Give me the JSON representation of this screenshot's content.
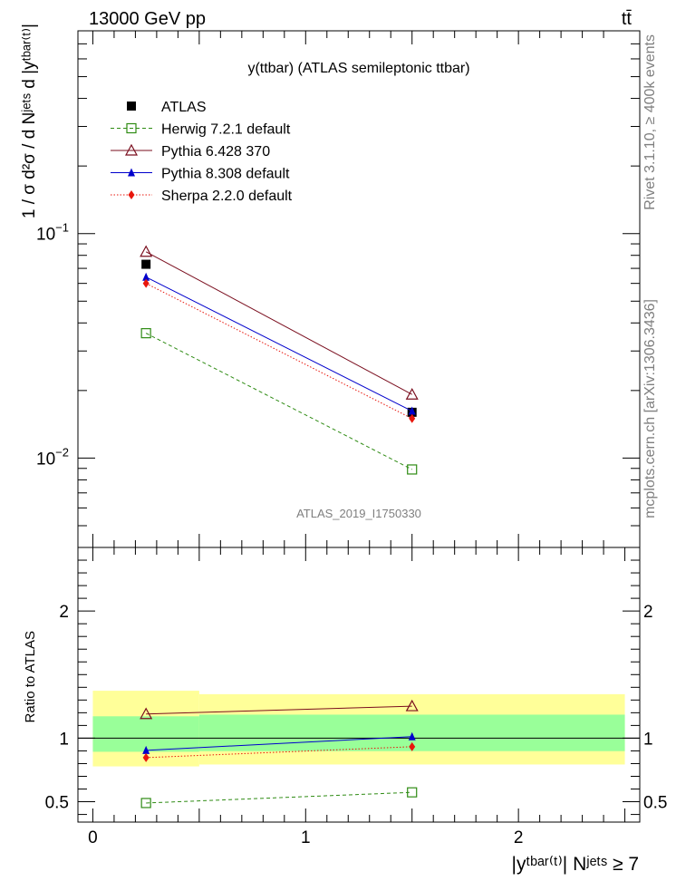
{
  "header": {
    "energy_label": "13000 GeV pp",
    "process_label": "tt̄"
  },
  "side_text": {
    "rivet": "Rivet 3.1.10, ≥ 400k events",
    "source": "mcplots.cern.ch [arXiv:1306.3436]"
  },
  "chart_data": [
    {
      "type": "line",
      "title": "y(ttbar) (ATLAS semileptonic ttbar)",
      "ylabel": "1 / σ d²σ / d Nʲᵉᵗˢ d |yᵗᵇᵃʳ⁽ᵗ⁾|",
      "ylog": true,
      "ylim": [
        0.004,
        0.8
      ],
      "xlim": [
        -0.07,
        2.57
      ],
      "yticks": [
        {
          "value": 0.1,
          "base": "10",
          "exp": "−1"
        },
        {
          "value": 0.01,
          "base": "10",
          "exp": "−2"
        }
      ],
      "watermark": "ATLAS_2019_I1750330",
      "legend_position": "top-left",
      "x": [
        0.25,
        1.5
      ],
      "series": [
        {
          "name": "ATLAS",
          "values": [
            0.073,
            0.016
          ],
          "color": "#000000",
          "marker": "square-filled",
          "line": "none"
        },
        {
          "name": "Herwig 7.2.1 default",
          "values": [
            0.036,
            0.0089
          ],
          "color": "#2e8b13",
          "marker": "square-open",
          "line": "dashed"
        },
        {
          "name": "Pythia 6.428 370",
          "values": [
            0.083,
            0.0192
          ],
          "color": "#7a0e1e",
          "marker": "triangle-open",
          "line": "solid"
        },
        {
          "name": "Pythia 8.308 default",
          "values": [
            0.064,
            0.0162
          ],
          "color": "#0000cc",
          "marker": "triangle-filled",
          "line": "solid"
        },
        {
          "name": "Sherpa 2.2.0 default",
          "values": [
            0.06,
            0.015
          ],
          "color": "#e8160c",
          "marker": "diamond-filled",
          "line": "dotted"
        }
      ]
    },
    {
      "type": "line",
      "ylabel": "Ratio to ATLAS",
      "xlabel": "|yᵗᵇᵃʳ⁽ᵗ⁾| Nʲᵉᵗˢ ≥ 7",
      "xlim": [
        -0.07,
        2.57
      ],
      "ylim": [
        0.34,
        2.5
      ],
      "xticks": [
        0,
        1,
        2
      ],
      "yticks": [
        0.5,
        1,
        2
      ],
      "x": [
        0.25,
        1.5
      ],
      "bins": [
        [
          0,
          0.5
        ],
        [
          0.5,
          2.5
        ]
      ],
      "bands": [
        {
          "name": "yellow",
          "color": "#ffff99",
          "lo": [
            0.778,
            0.793
          ],
          "hi": [
            1.373,
            1.346
          ]
        },
        {
          "name": "green",
          "color": "#99ff99",
          "lo": [
            0.893,
            0.898
          ],
          "hi": [
            1.172,
            1.185
          ]
        }
      ],
      "series": [
        {
          "name": "Herwig 7.2.1 default",
          "values": [
            0.49,
            0.574
          ]
        },
        {
          "name": "Pythia 6.428 370",
          "values": [
            1.19,
            1.252
          ]
        },
        {
          "name": "Pythia 8.308 default",
          "values": [
            0.904,
            1.012
          ]
        },
        {
          "name": "Sherpa 2.2.0 default",
          "values": [
            0.847,
            0.933
          ]
        }
      ]
    }
  ]
}
